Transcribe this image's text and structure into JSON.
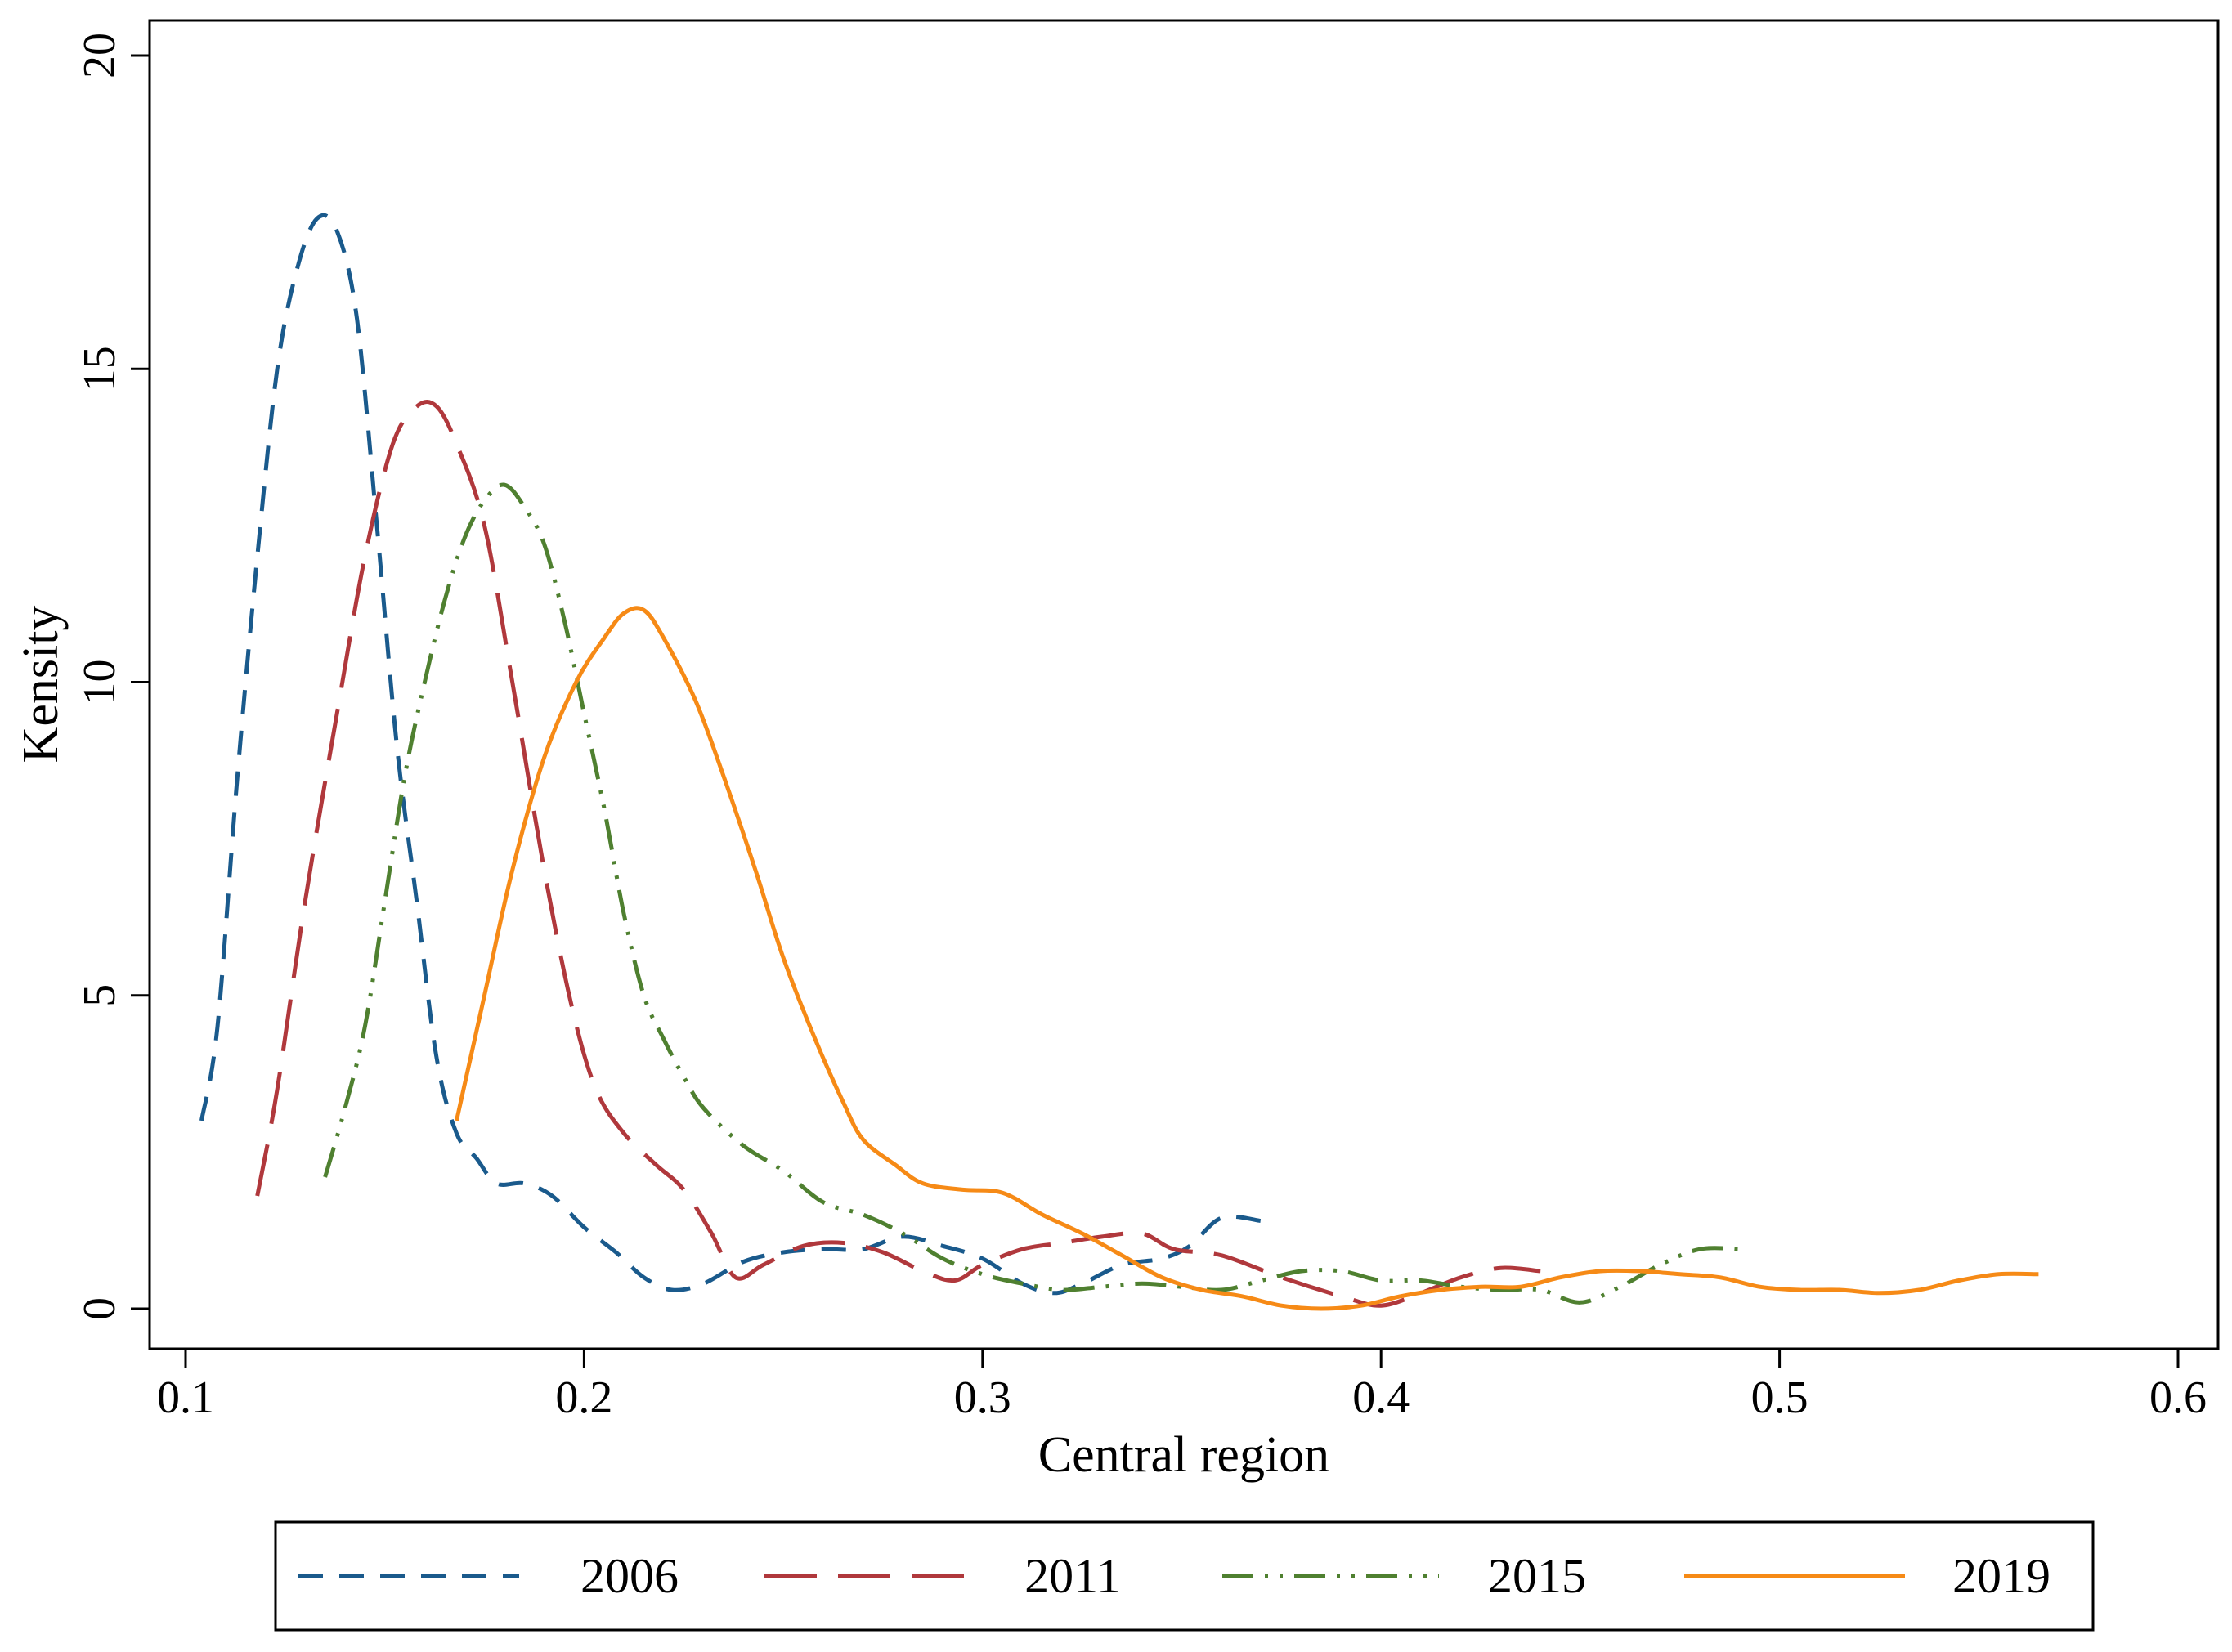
{
  "chart_data": {
    "type": "line",
    "title": "",
    "xlabel": "Central region",
    "ylabel": "Kensity",
    "xlim": [
      0.1,
      0.6
    ],
    "ylim": [
      0,
      20
    ],
    "xticks": [
      0.1,
      0.2,
      0.3,
      0.4,
      0.5,
      0.6
    ],
    "xtick_labels": [
      "0.1",
      "0.2",
      "0.3",
      "0.4",
      "0.5",
      "0.6"
    ],
    "yticks": [
      0,
      5,
      10,
      15,
      20
    ],
    "ytick_labels": [
      "0",
      "5",
      "10",
      "15",
      "20"
    ],
    "grid": false,
    "legend_position": "bottom",
    "series": [
      {
        "name": "2006",
        "color": "#1a5a8c",
        "dash": "short-dash",
        "points": [
          [
            0.104,
            3.0
          ],
          [
            0.108,
            4.5
          ],
          [
            0.113,
            8.5
          ],
          [
            0.118,
            12.0
          ],
          [
            0.123,
            15.0
          ],
          [
            0.128,
            16.6
          ],
          [
            0.133,
            17.4
          ],
          [
            0.138,
            17.2
          ],
          [
            0.143,
            15.8
          ],
          [
            0.148,
            12.5
          ],
          [
            0.153,
            9.0
          ],
          [
            0.158,
            6.5
          ],
          [
            0.163,
            4.0
          ],
          [
            0.168,
            2.8
          ],
          [
            0.173,
            2.4
          ],
          [
            0.178,
            2.0
          ],
          [
            0.185,
            2.0
          ],
          [
            0.192,
            1.8
          ],
          [
            0.2,
            1.3
          ],
          [
            0.208,
            0.9
          ],
          [
            0.215,
            0.5
          ],
          [
            0.222,
            0.3
          ],
          [
            0.23,
            0.4
          ],
          [
            0.24,
            0.75
          ],
          [
            0.25,
            0.9
          ],
          [
            0.26,
            0.95
          ],
          [
            0.27,
            0.95
          ],
          [
            0.28,
            1.15
          ],
          [
            0.29,
            1.0
          ],
          [
            0.3,
            0.8
          ],
          [
            0.31,
            0.4
          ],
          [
            0.318,
            0.25
          ],
          [
            0.325,
            0.4
          ],
          [
            0.335,
            0.7
          ],
          [
            0.345,
            0.8
          ],
          [
            0.352,
            1.0
          ],
          [
            0.36,
            1.45
          ],
          [
            0.37,
            1.4
          ]
        ]
      },
      {
        "name": "2011",
        "color": "#b0383c",
        "dash": "long-dash",
        "points": [
          [
            0.118,
            1.8
          ],
          [
            0.123,
            3.5
          ],
          [
            0.13,
            6.5
          ],
          [
            0.138,
            9.5
          ],
          [
            0.145,
            12.0
          ],
          [
            0.152,
            13.8
          ],
          [
            0.158,
            14.4
          ],
          [
            0.163,
            14.4
          ],
          [
            0.168,
            13.8
          ],
          [
            0.175,
            12.5
          ],
          [
            0.182,
            10.0
          ],
          [
            0.19,
            7.0
          ],
          [
            0.197,
            4.8
          ],
          [
            0.203,
            3.5
          ],
          [
            0.21,
            2.8
          ],
          [
            0.218,
            2.3
          ],
          [
            0.225,
            1.9
          ],
          [
            0.232,
            1.2
          ],
          [
            0.238,
            0.5
          ],
          [
            0.245,
            0.7
          ],
          [
            0.255,
            1.0
          ],
          [
            0.265,
            1.05
          ],
          [
            0.275,
            0.9
          ],
          [
            0.285,
            0.6
          ],
          [
            0.293,
            0.45
          ],
          [
            0.3,
            0.7
          ],
          [
            0.31,
            0.95
          ],
          [
            0.32,
            1.05
          ],
          [
            0.33,
            1.15
          ],
          [
            0.34,
            1.2
          ],
          [
            0.348,
            0.95
          ],
          [
            0.36,
            0.85
          ],
          [
            0.375,
            0.5
          ],
          [
            0.39,
            0.2
          ],
          [
            0.4,
            0.05
          ],
          [
            0.41,
            0.25
          ],
          [
            0.42,
            0.5
          ],
          [
            0.43,
            0.65
          ],
          [
            0.44,
            0.6
          ]
        ]
      },
      {
        "name": "2015",
        "color": "#4f8030",
        "dash": "dash-dot-dot",
        "points": [
          [
            0.135,
            2.1
          ],
          [
            0.14,
            3.2
          ],
          [
            0.145,
            4.5
          ],
          [
            0.15,
            6.5
          ],
          [
            0.155,
            8.5
          ],
          [
            0.16,
            10.0
          ],
          [
            0.165,
            11.3
          ],
          [
            0.17,
            12.3
          ],
          [
            0.175,
            12.9
          ],
          [
            0.18,
            13.15
          ],
          [
            0.185,
            12.8
          ],
          [
            0.19,
            12.2
          ],
          [
            0.195,
            11.0
          ],
          [
            0.2,
            9.5
          ],
          [
            0.205,
            8.0
          ],
          [
            0.21,
            6.3
          ],
          [
            0.215,
            5.0
          ],
          [
            0.22,
            4.3
          ],
          [
            0.225,
            3.7
          ],
          [
            0.23,
            3.2
          ],
          [
            0.24,
            2.6
          ],
          [
            0.25,
            2.2
          ],
          [
            0.26,
            1.7
          ],
          [
            0.27,
            1.5
          ],
          [
            0.28,
            1.2
          ],
          [
            0.29,
            0.8
          ],
          [
            0.3,
            0.55
          ],
          [
            0.31,
            0.4
          ],
          [
            0.32,
            0.3
          ],
          [
            0.33,
            0.35
          ],
          [
            0.34,
            0.4
          ],
          [
            0.35,
            0.35
          ],
          [
            0.36,
            0.3
          ],
          [
            0.37,
            0.45
          ],
          [
            0.38,
            0.6
          ],
          [
            0.39,
            0.6
          ],
          [
            0.4,
            0.45
          ],
          [
            0.41,
            0.45
          ],
          [
            0.42,
            0.35
          ],
          [
            0.43,
            0.3
          ],
          [
            0.44,
            0.3
          ],
          [
            0.45,
            0.1
          ],
          [
            0.46,
            0.35
          ],
          [
            0.47,
            0.7
          ],
          [
            0.48,
            0.95
          ],
          [
            0.49,
            0.95
          ]
        ]
      },
      {
        "name": "2019",
        "color": "#f68a16",
        "dash": "solid",
        "points": [
          [
            0.168,
            3.0
          ],
          [
            0.175,
            5.0
          ],
          [
            0.182,
            7.0
          ],
          [
            0.19,
            8.8
          ],
          [
            0.198,
            10.0
          ],
          [
            0.205,
            10.7
          ],
          [
            0.21,
            11.1
          ],
          [
            0.215,
            11.15
          ],
          [
            0.22,
            10.7
          ],
          [
            0.228,
            9.7
          ],
          [
            0.235,
            8.5
          ],
          [
            0.243,
            7.0
          ],
          [
            0.25,
            5.6
          ],
          [
            0.258,
            4.3
          ],
          [
            0.265,
            3.3
          ],
          [
            0.27,
            2.7
          ],
          [
            0.278,
            2.3
          ],
          [
            0.285,
            2.0
          ],
          [
            0.295,
            1.9
          ],
          [
            0.305,
            1.85
          ],
          [
            0.315,
            1.5
          ],
          [
            0.325,
            1.2
          ],
          [
            0.335,
            0.85
          ],
          [
            0.345,
            0.5
          ],
          [
            0.355,
            0.3
          ],
          [
            0.365,
            0.2
          ],
          [
            0.375,
            0.05
          ],
          [
            0.385,
            0.0
          ],
          [
            0.395,
            0.05
          ],
          [
            0.405,
            0.2
          ],
          [
            0.415,
            0.3
          ],
          [
            0.425,
            0.35
          ],
          [
            0.435,
            0.35
          ],
          [
            0.445,
            0.5
          ],
          [
            0.455,
            0.6
          ],
          [
            0.465,
            0.6
          ],
          [
            0.475,
            0.55
          ],
          [
            0.485,
            0.5
          ],
          [
            0.495,
            0.35
          ],
          [
            0.505,
            0.3
          ],
          [
            0.515,
            0.3
          ],
          [
            0.525,
            0.25
          ],
          [
            0.535,
            0.3
          ],
          [
            0.545,
            0.45
          ],
          [
            0.555,
            0.55
          ],
          [
            0.565,
            0.55
          ]
        ]
      }
    ]
  }
}
